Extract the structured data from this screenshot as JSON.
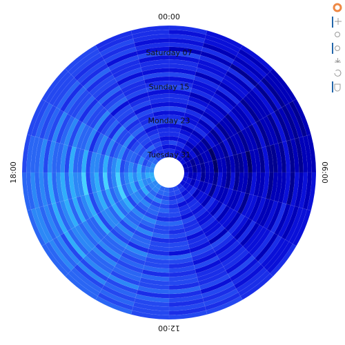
{
  "chart_data": {
    "type": "radial_heatmap",
    "angle_labels": [
      "00:00",
      null,
      null,
      null,
      null,
      null,
      "06:00",
      null,
      null,
      null,
      null,
      null,
      "12:00",
      null,
      null,
      null,
      null,
      null,
      "18:00",
      null,
      null,
      null,
      null,
      null
    ],
    "ring_labels": [
      null,
      null,
      null,
      null,
      null,
      null,
      "Saturday 07",
      null,
      null,
      null,
      null,
      null,
      null,
      null,
      "Sunday 15",
      null,
      null,
      null,
      null,
      null,
      null,
      null,
      "Monday 23",
      null,
      null,
      null,
      null,
      null,
      null,
      null,
      "Tuesday 31"
    ],
    "colors": [
      "#000066",
      "#000090",
      "#0000b8",
      "#0a10d8",
      "#1a2ee8",
      "#2448f0",
      "#2a66f4",
      "#2c88f6",
      "#30aefa",
      "#46d2ff"
    ],
    "values": [
      [
        4,
        3,
        3,
        2,
        2,
        2,
        3,
        3,
        4,
        4,
        5,
        5,
        5,
        6,
        6,
        6,
        6,
        6,
        5,
        5,
        5,
        5,
        4,
        4
      ],
      [
        3,
        3,
        2,
        2,
        1,
        2,
        2,
        3,
        3,
        4,
        4,
        4,
        5,
        5,
        6,
        6,
        7,
        6,
        6,
        5,
        5,
        5,
        4,
        4
      ],
      [
        4,
        3,
        3,
        2,
        2,
        2,
        3,
        3,
        3,
        4,
        5,
        5,
        5,
        6,
        6,
        7,
        7,
        7,
        6,
        6,
        5,
        5,
        5,
        4
      ],
      [
        3,
        2,
        2,
        1,
        1,
        1,
        2,
        2,
        3,
        3,
        4,
        4,
        5,
        5,
        5,
        6,
        6,
        6,
        6,
        5,
        5,
        4,
        4,
        3
      ],
      [
        4,
        4,
        3,
        3,
        2,
        2,
        3,
        3,
        4,
        4,
        5,
        5,
        6,
        6,
        7,
        7,
        7,
        7,
        7,
        6,
        6,
        5,
        5,
        4
      ],
      [
        2,
        2,
        1,
        1,
        1,
        1,
        1,
        2,
        2,
        3,
        3,
        4,
        4,
        5,
        5,
        5,
        6,
        6,
        5,
        5,
        4,
        4,
        3,
        3
      ],
      [
        5,
        4,
        4,
        3,
        3,
        3,
        3,
        4,
        4,
        5,
        5,
        6,
        6,
        7,
        7,
        8,
        8,
        8,
        7,
        7,
        6,
        6,
        5,
        5
      ],
      [
        3,
        3,
        2,
        2,
        1,
        1,
        2,
        2,
        3,
        3,
        4,
        4,
        5,
        5,
        6,
        6,
        6,
        6,
        6,
        5,
        5,
        4,
        4,
        3
      ],
      [
        4,
        3,
        3,
        2,
        2,
        2,
        2,
        3,
        3,
        4,
        4,
        5,
        5,
        6,
        6,
        7,
        7,
        7,
        6,
        6,
        5,
        5,
        4,
        4
      ],
      [
        4,
        4,
        3,
        2,
        2,
        1,
        2,
        2,
        3,
        4,
        4,
        5,
        6,
        6,
        7,
        7,
        8,
        8,
        7,
        7,
        6,
        5,
        5,
        4
      ],
      [
        3,
        2,
        2,
        1,
        1,
        1,
        1,
        2,
        2,
        3,
        3,
        4,
        4,
        5,
        5,
        6,
        6,
        6,
        5,
        5,
        4,
        4,
        3,
        3
      ],
      [
        5,
        4,
        4,
        3,
        3,
        3,
        3,
        3,
        4,
        4,
        5,
        5,
        6,
        6,
        7,
        7,
        8,
        8,
        8,
        7,
        6,
        6,
        5,
        5
      ],
      [
        3,
        3,
        2,
        2,
        1,
        1,
        2,
        2,
        2,
        3,
        3,
        4,
        5,
        5,
        6,
        6,
        6,
        7,
        6,
        6,
        5,
        4,
        4,
        3
      ],
      [
        4,
        3,
        3,
        2,
        2,
        2,
        2,
        3,
        3,
        4,
        4,
        5,
        5,
        6,
        6,
        6,
        7,
        7,
        6,
        6,
        5,
        5,
        4,
        4
      ],
      [
        5,
        4,
        4,
        3,
        2,
        2,
        3,
        3,
        4,
        5,
        5,
        6,
        6,
        7,
        7,
        8,
        8,
        9,
        8,
        7,
        7,
        6,
        5,
        5
      ],
      [
        3,
        2,
        2,
        1,
        1,
        0,
        1,
        1,
        2,
        2,
        3,
        3,
        4,
        4,
        5,
        5,
        5,
        5,
        5,
        4,
        4,
        3,
        3,
        3
      ],
      [
        4,
        3,
        3,
        2,
        2,
        2,
        2,
        3,
        3,
        4,
        4,
        5,
        5,
        6,
        6,
        7,
        7,
        7,
        7,
        6,
        5,
        5,
        4,
        4
      ],
      [
        4,
        4,
        3,
        2,
        2,
        1,
        2,
        2,
        3,
        3,
        4,
        5,
        5,
        6,
        7,
        7,
        8,
        8,
        7,
        7,
        6,
        5,
        5,
        4
      ],
      [
        3,
        2,
        2,
        1,
        1,
        1,
        1,
        2,
        2,
        3,
        3,
        4,
        4,
        5,
        5,
        6,
        6,
        6,
        6,
        5,
        4,
        4,
        3,
        3
      ],
      [
        5,
        4,
        4,
        3,
        3,
        2,
        3,
        3,
        4,
        4,
        5,
        5,
        6,
        7,
        7,
        8,
        8,
        9,
        8,
        7,
        7,
        6,
        5,
        5
      ],
      [
        3,
        3,
        2,
        1,
        1,
        1,
        1,
        2,
        2,
        3,
        4,
        4,
        5,
        5,
        6,
        6,
        6,
        6,
        6,
        5,
        5,
        4,
        4,
        3
      ],
      [
        4,
        3,
        3,
        2,
        2,
        2,
        2,
        2,
        3,
        3,
        4,
        5,
        5,
        6,
        6,
        7,
        7,
        7,
        7,
        6,
        5,
        5,
        4,
        4
      ],
      [
        5,
        4,
        4,
        3,
        2,
        2,
        3,
        3,
        4,
        4,
        5,
        6,
        6,
        7,
        7,
        8,
        9,
        9,
        8,
        7,
        7,
        6,
        5,
        5
      ],
      [
        3,
        2,
        2,
        1,
        0,
        0,
        1,
        1,
        2,
        3,
        3,
        4,
        4,
        5,
        5,
        5,
        6,
        6,
        5,
        5,
        4,
        4,
        3,
        3
      ],
      [
        4,
        3,
        3,
        2,
        2,
        2,
        2,
        3,
        3,
        4,
        4,
        5,
        5,
        6,
        6,
        7,
        7,
        7,
        6,
        6,
        5,
        5,
        4,
        4
      ],
      [
        4,
        4,
        3,
        2,
        2,
        2,
        2,
        2,
        3,
        4,
        4,
        5,
        6,
        6,
        7,
        7,
        8,
        8,
        7,
        6,
        6,
        5,
        5,
        4
      ],
      [
        3,
        3,
        2,
        1,
        1,
        1,
        1,
        2,
        2,
        3,
        3,
        4,
        5,
        5,
        5,
        6,
        6,
        7,
        6,
        5,
        5,
        4,
        4,
        3
      ],
      [
        5,
        4,
        3,
        3,
        2,
        2,
        3,
        3,
        4,
        4,
        5,
        5,
        6,
        7,
        7,
        8,
        8,
        8,
        8,
        7,
        6,
        6,
        5,
        4
      ],
      [
        3,
        3,
        2,
        2,
        1,
        1,
        2,
        2,
        3,
        3,
        4,
        4,
        5,
        5,
        6,
        6,
        7,
        7,
        6,
        5,
        5,
        4,
        4,
        3
      ],
      [
        4,
        3,
        3,
        2,
        2,
        2,
        2,
        3,
        3,
        4,
        5,
        5,
        6,
        6,
        7,
        7,
        7,
        8,
        7,
        6,
        6,
        5,
        4,
        4
      ],
      [
        4,
        4,
        3,
        3,
        2,
        2,
        3,
        3,
        3,
        4,
        5,
        5,
        6,
        6,
        7,
        7,
        8,
        8,
        7,
        7,
        6,
        5,
        5,
        4
      ]
    ]
  }
}
